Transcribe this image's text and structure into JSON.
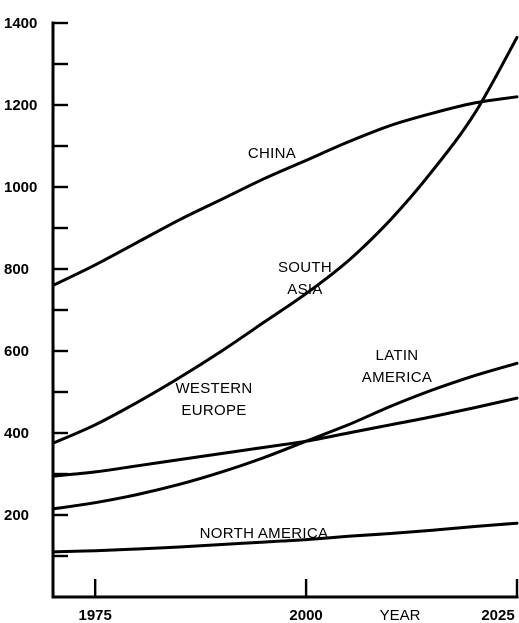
{
  "chart_data": {
    "type": "line",
    "title": "",
    "xlabel": "YEAR",
    "ylabel": "",
    "xlim": [
      1970,
      2025
    ],
    "ylim": [
      0,
      1400
    ],
    "grid": false,
    "x_ticks": [
      1975,
      2000,
      2025
    ],
    "y_ticks": [
      200,
      400,
      600,
      800,
      1000,
      1200,
      1400
    ],
    "series": [
      {
        "name": "CHINA",
        "label_lines": [
          "CHINA"
        ],
        "x": [
          1970,
          1975,
          1980,
          1985,
          1990,
          1995,
          2000,
          2005,
          2010,
          2015,
          2020,
          2025
        ],
        "values": [
          760,
          810,
          865,
          920,
          970,
          1020,
          1065,
          1110,
          1150,
          1180,
          1205,
          1220
        ]
      },
      {
        "name": "SOUTH ASIA",
        "label_lines": [
          "SOUTH",
          "ASIA"
        ],
        "x": [
          1970,
          1975,
          1980,
          1985,
          1990,
          1995,
          2000,
          2005,
          2010,
          2015,
          2020,
          2025
        ],
        "values": [
          375,
          420,
          475,
          535,
          600,
          670,
          740,
          820,
          920,
          1040,
          1180,
          1365
        ]
      },
      {
        "name": "LATIN AMERICA",
        "label_lines": [
          "LATIN",
          "AMERICA"
        ],
        "x": [
          1970,
          1975,
          1980,
          1985,
          1990,
          1995,
          2000,
          2005,
          2010,
          2015,
          2020,
          2025
        ],
        "values": [
          215,
          230,
          250,
          275,
          305,
          340,
          380,
          420,
          465,
          505,
          540,
          570
        ]
      },
      {
        "name": "WESTERN EUROPE",
        "label_lines": [
          "WESTERN",
          "EUROPE"
        ],
        "x": [
          1970,
          1975,
          1980,
          1985,
          1990,
          1995,
          2000,
          2005,
          2010,
          2015,
          2020,
          2025
        ],
        "values": [
          295,
          305,
          320,
          335,
          350,
          365,
          380,
          400,
          420,
          440,
          462,
          485
        ]
      },
      {
        "name": "NORTH AMERICA",
        "label_lines": [
          "NORTH AMERICA"
        ],
        "x": [
          1970,
          1975,
          1980,
          1985,
          1990,
          1995,
          2000,
          2005,
          2010,
          2015,
          2020,
          2025
        ],
        "values": [
          110,
          113,
          117,
          122,
          128,
          134,
          140,
          148,
          155,
          163,
          172,
          180
        ]
      }
    ]
  }
}
